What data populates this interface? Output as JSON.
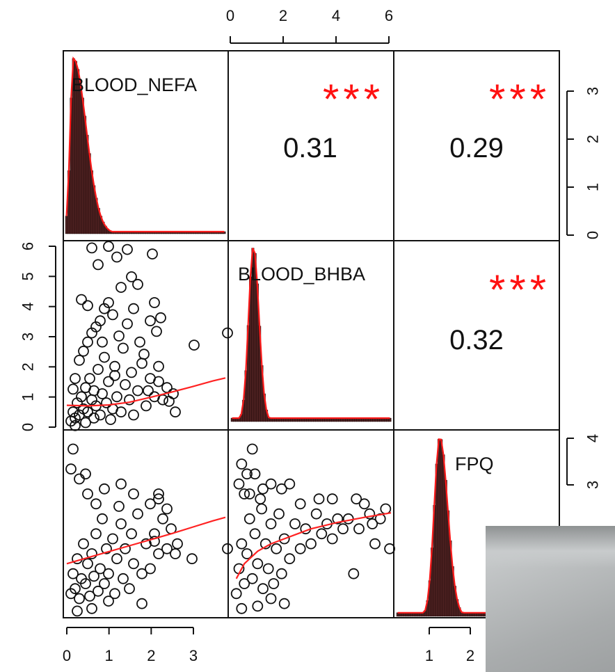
{
  "chart_data": {
    "type": "scatter",
    "title": "",
    "variables": [
      "BLOOD_NEFA",
      "BLOOD_BHBA",
      "FPQ"
    ],
    "diagonal": {
      "BLOOD_NEFA": {
        "type": "histogram",
        "peak_x": 0.1,
        "density_peak": 3.6
      },
      "BLOOD_BHBA": {
        "type": "histogram",
        "peak_x": 0.8
      },
      "FPQ": {
        "type": "histogram",
        "peak_x": 1.25,
        "density_peak": 3.9
      }
    },
    "correlations": [
      {
        "pair": [
          "BLOOD_NEFA",
          "BLOOD_BHBA"
        ],
        "value": "0.31",
        "stars": "***"
      },
      {
        "pair": [
          "BLOOD_NEFA",
          "FPQ"
        ],
        "value": "0.29",
        "stars": "***"
      },
      {
        "pair": [
          "BLOOD_BHBA",
          "FPQ"
        ],
        "value": "0.32",
        "stars": "***"
      }
    ],
    "axes": {
      "top_ticks": [
        "0",
        "2",
        "4",
        "6"
      ],
      "bottom_left_ticks": [
        "0",
        "1",
        "2",
        "3"
      ],
      "bottom_right_ticks": [
        "1",
        "2"
      ],
      "left_ticks": [
        "0",
        "1",
        "2",
        "3",
        "4",
        "5",
        "6"
      ],
      "right_top_ticks": [
        "0",
        "1",
        "2",
        "3"
      ],
      "right_bottom_ticks": [
        "3",
        "4"
      ]
    },
    "scatter_panels": [
      {
        "x_var": "BLOOD_NEFA",
        "y_var": "BLOOD_BHBA",
        "xlim": [
          0,
          3.8
        ],
        "ylim": [
          0,
          6
        ],
        "points": [
          [
            0.1,
            0.2
          ],
          [
            0.15,
            0.5
          ],
          [
            0.2,
            0.3
          ],
          [
            0.25,
            0.8
          ],
          [
            0.3,
            0.4
          ],
          [
            0.35,
            1.0
          ],
          [
            0.4,
            0.6
          ],
          [
            0.45,
            1.3
          ],
          [
            0.5,
            0.5
          ],
          [
            0.55,
            1.6
          ],
          [
            0.6,
            0.9
          ],
          [
            0.65,
            1.2
          ],
          [
            0.7,
            0.7
          ],
          [
            0.75,
            1.9
          ],
          [
            0.8,
            0.4
          ],
          [
            0.85,
            1.1
          ],
          [
            0.9,
            2.3
          ],
          [
            0.95,
            0.8
          ],
          [
            1.0,
            1.5
          ],
          [
            1.1,
            0.6
          ],
          [
            1.15,
            2.0
          ],
          [
            1.2,
            1.0
          ],
          [
            1.3,
            0.5
          ],
          [
            1.35,
            2.6
          ],
          [
            1.4,
            1.4
          ],
          [
            1.5,
            0.9
          ],
          [
            1.55,
            1.8
          ],
          [
            1.6,
            0.4
          ],
          [
            1.7,
            1.2
          ],
          [
            1.8,
            2.1
          ],
          [
            1.9,
            0.7
          ],
          [
            2.0,
            1.6
          ],
          [
            2.1,
            1.0
          ],
          [
            2.2,
            2.0
          ],
          [
            2.3,
            0.9
          ],
          [
            2.4,
            1.3
          ],
          [
            2.55,
            1.1
          ],
          [
            2.6,
            0.5
          ],
          [
            2.2,
            1.5
          ],
          [
            1.95,
            1.2
          ],
          [
            0.2,
            1.6
          ],
          [
            0.3,
            2.2
          ],
          [
            0.4,
            2.5
          ],
          [
            0.5,
            2.8
          ],
          [
            0.6,
            3.1
          ],
          [
            0.7,
            3.3
          ],
          [
            0.8,
            3.5
          ],
          [
            0.9,
            3.9
          ],
          [
            1.0,
            4.1
          ],
          [
            1.1,
            3.7
          ],
          [
            0.5,
            4.0
          ],
          [
            0.35,
            4.2
          ],
          [
            1.25,
            3.0
          ],
          [
            1.45,
            3.4
          ],
          [
            1.6,
            3.9
          ],
          [
            1.3,
            4.6
          ],
          [
            1.55,
            4.95
          ],
          [
            1.7,
            4.7
          ],
          [
            1.2,
            5.6
          ],
          [
            1.45,
            5.85
          ],
          [
            0.75,
            5.35
          ],
          [
            0.6,
            5.9
          ],
          [
            1.0,
            5.95
          ],
          [
            2.05,
            5.7
          ],
          [
            2.1,
            4.1
          ],
          [
            2.0,
            3.5
          ],
          [
            2.25,
            3.6
          ],
          [
            3.05,
            2.7
          ],
          [
            3.85,
            3.1
          ],
          [
            1.75,
            2.8
          ],
          [
            1.85,
            2.4
          ],
          [
            2.15,
            3.15
          ],
          [
            1.15,
            1.7
          ],
          [
            0.85,
            2.8
          ],
          [
            0.65,
            0.3
          ],
          [
            0.2,
            0.05
          ],
          [
            0.45,
            0.15
          ],
          [
            1.05,
            0.25
          ],
          [
            2.45,
            0.85
          ],
          [
            0.15,
            1.25
          ]
        ],
        "trend": [
          [
            0,
            0.72
          ],
          [
            0.5,
            0.7
          ],
          [
            1,
            0.73
          ],
          [
            1.5,
            0.82
          ],
          [
            2,
            0.98
          ],
          [
            2.5,
            1.15
          ],
          [
            3,
            1.33
          ],
          [
            3.5,
            1.52
          ],
          [
            3.8,
            1.62
          ]
        ]
      },
      {
        "x_var": "BLOOD_NEFA",
        "y_var": "FPQ",
        "xlim": [
          0,
          3.8
        ],
        "ylim": [
          0.6,
          4.2
        ],
        "points": [
          [
            0.1,
            1.0
          ],
          [
            0.15,
            1.4
          ],
          [
            0.2,
            1.1
          ],
          [
            0.25,
            1.7
          ],
          [
            0.3,
            0.9
          ],
          [
            0.35,
            1.3
          ],
          [
            0.4,
            2.0
          ],
          [
            0.45,
            1.2
          ],
          [
            0.5,
            1.6
          ],
          [
            0.55,
            0.95
          ],
          [
            0.6,
            1.8
          ],
          [
            0.65,
            1.35
          ],
          [
            0.7,
            2.2
          ],
          [
            0.75,
            1.05
          ],
          [
            0.8,
            1.5
          ],
          [
            0.85,
            2.5
          ],
          [
            0.9,
            1.2
          ],
          [
            0.95,
            1.9
          ],
          [
            1.0,
            1.4
          ],
          [
            1.1,
            2.1
          ],
          [
            1.15,
            1.0
          ],
          [
            1.2,
            1.7
          ],
          [
            1.3,
            2.4
          ],
          [
            1.35,
            1.3
          ],
          [
            1.4,
            1.9
          ],
          [
            1.5,
            1.1
          ],
          [
            1.55,
            2.2
          ],
          [
            1.6,
            1.6
          ],
          [
            1.7,
            2.6
          ],
          [
            1.8,
            1.4
          ],
          [
            1.9,
            2.0
          ],
          [
            2.0,
            1.5
          ],
          [
            2.1,
            2.2
          ],
          [
            2.2,
            1.8
          ],
          [
            2.3,
            2.5
          ],
          [
            2.4,
            1.9
          ],
          [
            2.5,
            2.3
          ],
          [
            2.6,
            1.8
          ],
          [
            2.2,
            2.9
          ],
          [
            0.1,
            3.5
          ],
          [
            0.15,
            3.9
          ],
          [
            0.3,
            3.3
          ],
          [
            0.5,
            3.0
          ],
          [
            0.45,
            3.4
          ],
          [
            0.7,
            2.8
          ],
          [
            1.3,
            3.2
          ],
          [
            1.6,
            3.0
          ],
          [
            2.0,
            2.8
          ],
          [
            2.2,
            3.0
          ],
          [
            2.65,
            2.0
          ],
          [
            3.0,
            1.7
          ],
          [
            3.85,
            1.9
          ],
          [
            1.0,
            0.85
          ],
          [
            1.8,
            0.8
          ],
          [
            0.6,
            0.7
          ],
          [
            0.25,
            0.65
          ],
          [
            2.1,
            2.05
          ],
          [
            2.4,
            2.7
          ],
          [
            1.25,
            2.75
          ],
          [
            0.9,
            3.1
          ]
        ],
        "trend": [
          [
            0,
            1.6
          ],
          [
            0.5,
            1.72
          ],
          [
            1,
            1.84
          ],
          [
            1.5,
            1.96
          ],
          [
            2,
            2.08
          ],
          [
            2.5,
            2.2
          ],
          [
            3,
            2.33
          ],
          [
            3.5,
            2.46
          ],
          [
            3.8,
            2.53
          ]
        ]
      },
      {
        "x_var": "BLOOD_BHBA",
        "y_var": "FPQ",
        "xlim": [
          0,
          6
        ],
        "ylim": [
          0.6,
          4.2
        ],
        "points": [
          [
            0.2,
            1.0
          ],
          [
            0.3,
            1.5
          ],
          [
            0.4,
            2.0
          ],
          [
            0.5,
            1.2
          ],
          [
            0.6,
            1.8
          ],
          [
            0.7,
            2.5
          ],
          [
            0.8,
            1.3
          ],
          [
            0.9,
            2.2
          ],
          [
            1.0,
            1.6
          ],
          [
            1.1,
            2.9
          ],
          [
            1.2,
            1.1
          ],
          [
            1.3,
            2.0
          ],
          [
            1.4,
            1.5
          ],
          [
            1.5,
            2.4
          ],
          [
            1.6,
            1.2
          ],
          [
            1.7,
            1.9
          ],
          [
            1.8,
            2.6
          ],
          [
            1.9,
            1.4
          ],
          [
            2.0,
            2.1
          ],
          [
            2.2,
            1.7
          ],
          [
            2.4,
            2.4
          ],
          [
            2.6,
            1.9
          ],
          [
            2.8,
            2.3
          ],
          [
            3.0,
            2.0
          ],
          [
            3.2,
            2.6
          ],
          [
            3.4,
            2.2
          ],
          [
            3.6,
            2.4
          ],
          [
            3.8,
            2.1
          ],
          [
            4.0,
            2.5
          ],
          [
            4.2,
            2.3
          ],
          [
            4.4,
            2.5
          ],
          [
            4.6,
            1.4
          ],
          [
            4.8,
            2.3
          ],
          [
            5.0,
            2.8
          ],
          [
            5.2,
            2.6
          ],
          [
            5.4,
            2.0
          ],
          [
            5.6,
            2.5
          ],
          [
            5.8,
            2.7
          ],
          [
            5.95,
            1.9
          ],
          [
            0.3,
            3.2
          ],
          [
            0.4,
            3.6
          ],
          [
            0.5,
            3.0
          ],
          [
            0.6,
            3.4
          ],
          [
            0.7,
            3.0
          ],
          [
            0.9,
            3.4
          ],
          [
            1.2,
            3.1
          ],
          [
            1.5,
            3.2
          ],
          [
            1.9,
            3.1
          ],
          [
            2.2,
            3.2
          ],
          [
            3.3,
            2.9
          ],
          [
            4.7,
            2.9
          ],
          [
            5.3,
            2.4
          ],
          [
            1.0,
            0.75
          ],
          [
            2.0,
            0.8
          ],
          [
            1.5,
            0.9
          ],
          [
            0.4,
            0.7
          ],
          [
            2.6,
            2.8
          ],
          [
            3.8,
            2.9
          ],
          [
            0.8,
            3.9
          ],
          [
            1.15,
            2.7
          ]
        ],
        "trend": [
          [
            0.2,
            1.3
          ],
          [
            0.5,
            1.6
          ],
          [
            1,
            1.85
          ],
          [
            1.5,
            2.0
          ],
          [
            2,
            2.1
          ],
          [
            2.5,
            2.2
          ],
          [
            3,
            2.3
          ],
          [
            4,
            2.43
          ],
          [
            5,
            2.53
          ],
          [
            6,
            2.62
          ]
        ]
      }
    ]
  }
}
